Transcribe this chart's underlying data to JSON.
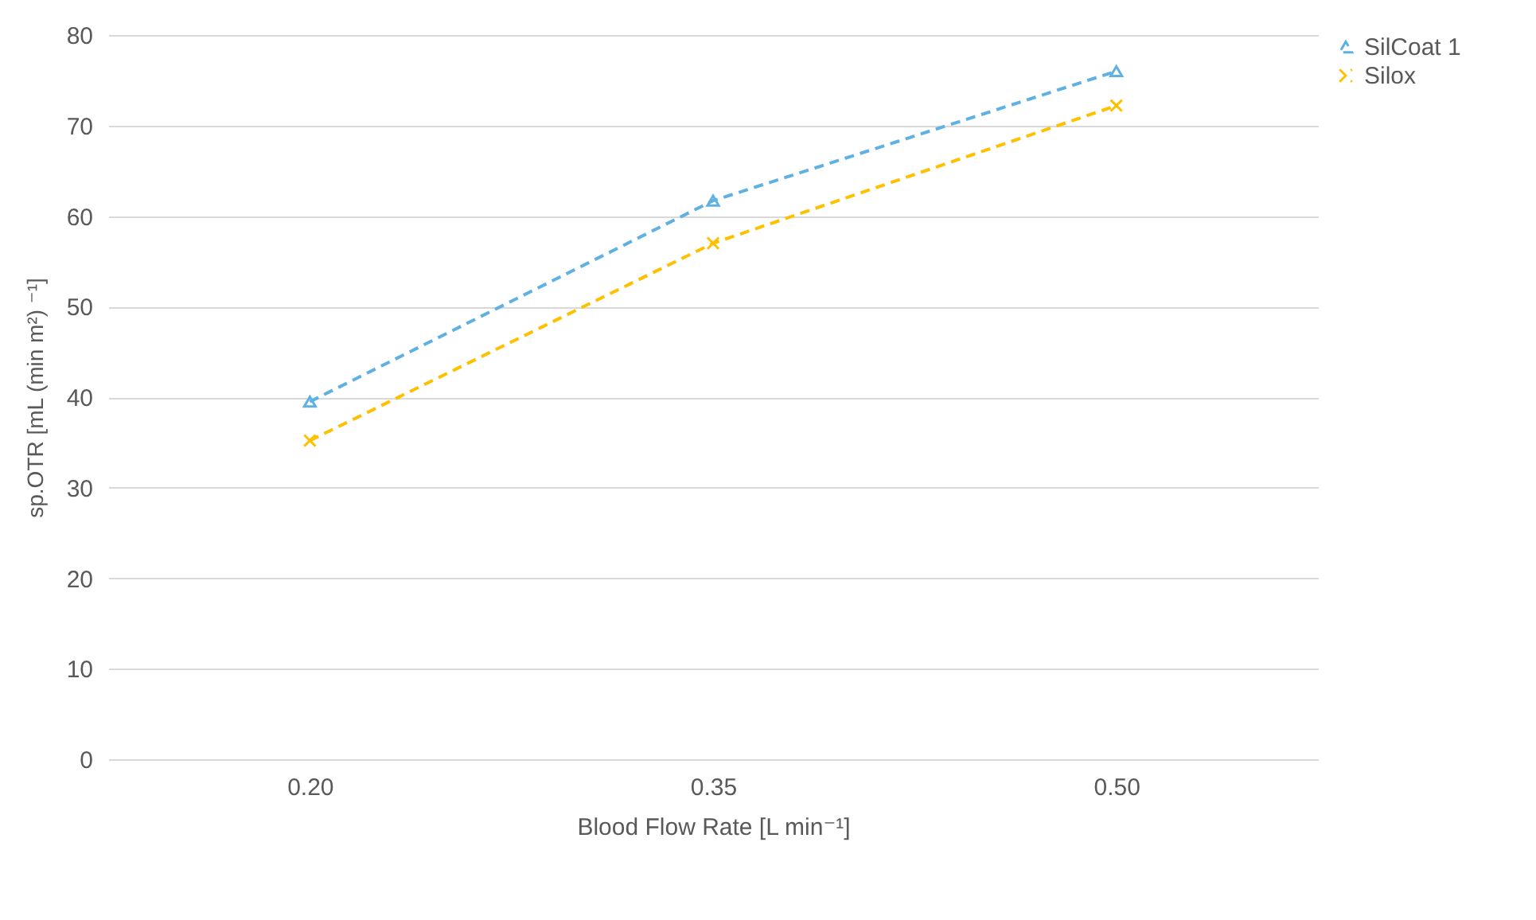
{
  "chart_data": {
    "type": "line",
    "xlabel": "Blood Flow Rate [L min⁻¹]",
    "ylabel": "sp.OTR [mL (min m²) ⁻¹]",
    "categories": [
      "0.20",
      "0.35",
      "0.50"
    ],
    "series": [
      {
        "name": "SilCoat 1",
        "color": "#5fb0e3",
        "marker": "triangle",
        "values": [
          39.5,
          61.7,
          76
        ]
      },
      {
        "name": "Silox",
        "color": "#ffc000",
        "marker": "cross",
        "values": [
          35.2,
          57,
          72.2
        ]
      }
    ],
    "ylim": [
      0,
      80
    ],
    "yticks": [
      0,
      10,
      20,
      30,
      40,
      50,
      60,
      70,
      80
    ],
    "grid": "y",
    "legend": "right",
    "line_style": "dashed"
  }
}
